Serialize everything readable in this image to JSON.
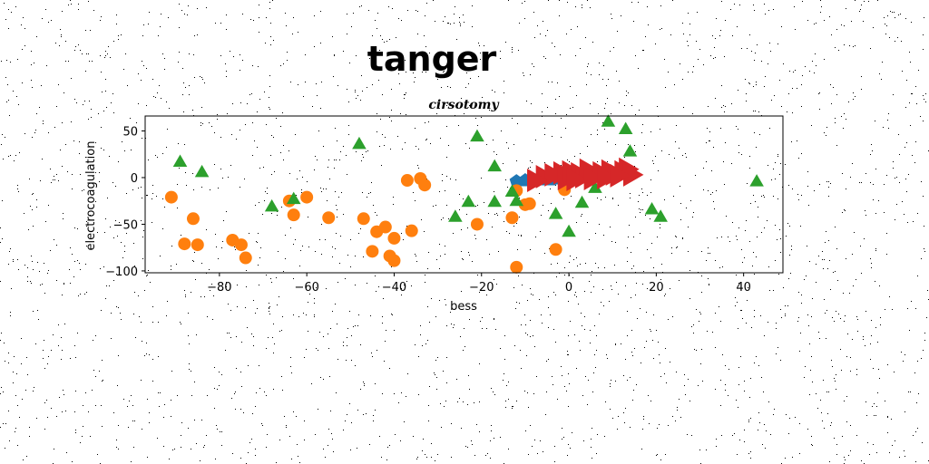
{
  "chart_data": {
    "type": "scatter",
    "suptitle": "tanger",
    "title": "cirsotomy",
    "xlabel": "bess",
    "ylabel": "electrocoagulation",
    "xlim": [
      -97,
      49
    ],
    "ylim": [
      -102,
      66
    ],
    "xticks": [
      -80,
      -60,
      -40,
      -20,
      0,
      20,
      40
    ],
    "yticks": [
      -100,
      -50,
      0,
      50
    ],
    "grid": false,
    "legend": "none",
    "series": [
      {
        "marker": "pentagon",
        "color": "#1f77b4",
        "points": [
          [
            -12,
            -4
          ],
          [
            -10,
            -3
          ],
          [
            -8,
            -3
          ],
          [
            -6,
            -2
          ],
          [
            -4,
            -2
          ],
          [
            -2,
            -1
          ],
          [
            0,
            0
          ],
          [
            2,
            1
          ],
          [
            4,
            1
          ],
          [
            6,
            2
          ],
          [
            8,
            3
          ],
          [
            10,
            4
          ],
          [
            12,
            5
          ],
          [
            14,
            6
          ]
        ]
      },
      {
        "marker": "circle",
        "color": "#ff7f0e",
        "points": [
          [
            -91,
            -21
          ],
          [
            -86,
            -44
          ],
          [
            -88,
            -71
          ],
          [
            -85,
            -72
          ],
          [
            -77,
            -67
          ],
          [
            -75,
            -72
          ],
          [
            -74,
            -86
          ],
          [
            -64,
            -25
          ],
          [
            -63,
            -40
          ],
          [
            -60,
            -21
          ],
          [
            -55,
            -43
          ],
          [
            -47,
            -44
          ],
          [
            -45,
            -79
          ],
          [
            -44,
            -58
          ],
          [
            -42,
            -53
          ],
          [
            -41,
            -84
          ],
          [
            -40,
            -89
          ],
          [
            -40,
            -65
          ],
          [
            -37,
            -3
          ],
          [
            -36,
            -57
          ],
          [
            -34,
            -1
          ],
          [
            -33,
            -8
          ],
          [
            -21,
            -50
          ],
          [
            -13,
            -43
          ],
          [
            -12,
            -96
          ],
          [
            -10,
            -29
          ],
          [
            -9,
            -28
          ],
          [
            -3,
            -77
          ],
          [
            -1,
            -13
          ],
          [
            -12,
            -14
          ]
        ]
      },
      {
        "marker": "triangle",
        "color": "#2ca02c",
        "points": [
          [
            -89,
            16
          ],
          [
            -84,
            5
          ],
          [
            -68,
            -32
          ],
          [
            -63,
            -24
          ],
          [
            -48,
            35
          ],
          [
            -26,
            -43
          ],
          [
            -23,
            -27
          ],
          [
            -21,
            43
          ],
          [
            -17,
            11
          ],
          [
            -17,
            -27
          ],
          [
            -13,
            -16
          ],
          [
            -12,
            -26
          ],
          [
            -3,
            -40
          ],
          [
            0,
            -59
          ],
          [
            3,
            -28
          ],
          [
            6,
            -12
          ],
          [
            9,
            59
          ],
          [
            13,
            51
          ],
          [
            14,
            27
          ],
          [
            19,
            -35
          ],
          [
            21,
            -43
          ],
          [
            43,
            -5
          ]
        ]
      },
      {
        "marker": "triangle-right",
        "color": "#d62728",
        "points": [
          [
            -6,
            1
          ],
          [
            -4,
            3
          ],
          [
            -2,
            5
          ],
          [
            -1,
            -1
          ],
          [
            0,
            6
          ],
          [
            2,
            4
          ],
          [
            3,
            1
          ],
          [
            4,
            8
          ],
          [
            6,
            2
          ],
          [
            7,
            5
          ],
          [
            9,
            7
          ],
          [
            10,
            4
          ],
          [
            12,
            6
          ],
          [
            13,
            9
          ],
          [
            14,
            3
          ],
          [
            -8,
            -3
          ],
          [
            1,
            -2
          ],
          [
            5,
            -1
          ],
          [
            8,
            0
          ],
          [
            11,
            2
          ]
        ]
      }
    ]
  }
}
